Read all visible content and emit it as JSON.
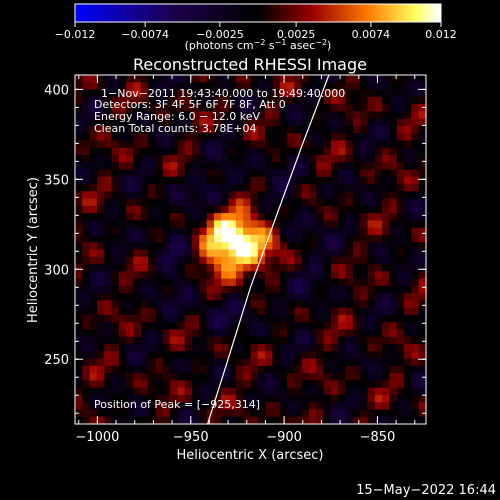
{
  "chart_data": {
    "type": "heatmap",
    "title": "Reconstructed RHESSI Image",
    "colorbar": {
      "min": -0.012,
      "max": 0.012,
      "ticks": [
        -0.012,
        -0.0074,
        -0.0025,
        0.0025,
        0.0074,
        0.012
      ],
      "tick_labels": [
        "−0.012",
        "−0.0074",
        "−0.0025",
        "0.0025",
        "0.0074",
        "0.012"
      ],
      "unit_main": "(photons cm",
      "unit_sup1": "−2",
      "unit_mid": " s",
      "unit_sup2": "−1",
      "unit_end": " asec",
      "unit_sup3": "−2",
      "unit_close": ")",
      "colors": [
        "#0000ff",
        "#1c004a",
        "#000000",
        "#9a0000",
        "#ff7a00",
        "#ffff60",
        "#ffffff"
      ]
    },
    "xlabel": "Heliocentric X (arcsec)",
    "ylabel": "Heliocentric Y (arcsec)",
    "xlim": [
      -1012,
      -824
    ],
    "ylim": [
      214,
      408
    ],
    "xticks": [
      -1000,
      -950,
      -900,
      -850
    ],
    "xtick_labels": [
      "−1000",
      "−950",
      "−900",
      "−850"
    ],
    "yticks": [
      250,
      300,
      350,
      400
    ],
    "ytick_labels": [
      "250",
      "300",
      "350",
      "400"
    ],
    "info_lines": [
      "1−Nov−2011 19:43:40.000 to 19:49:40.000",
      "Detectors: 3F 4F 5F 6F 7F 8F, Att 0",
      "Energy Range: 6.0 − 12.0 keV",
      "Clean     Total counts: 3.78E+04"
    ],
    "peak_label": "Position of Peak = [−925,314]",
    "peak": {
      "x": -925,
      "y": 314,
      "value": 0.012
    },
    "limb_points": [
      [
        -941,
        214
      ],
      [
        -930,
        250
      ],
      [
        -918,
        290
      ],
      [
        -904,
        330
      ],
      [
        -890,
        370
      ],
      [
        -876,
        408
      ]
    ],
    "grid": false,
    "colorbar_placement": "top"
  },
  "footer": {
    "timestamp": "15−May−2022 16:44"
  }
}
